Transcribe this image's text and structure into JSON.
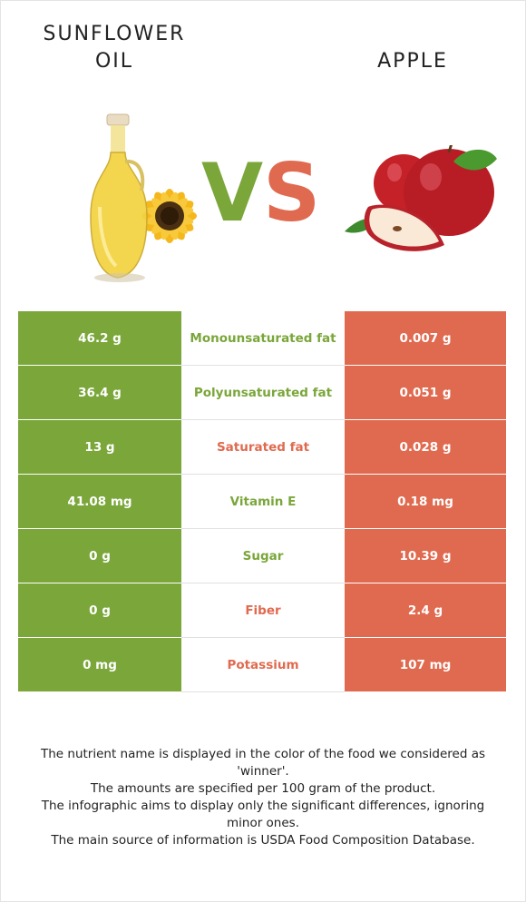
{
  "left_food": {
    "name_line1": "SUNFLOWER",
    "name_line2": "OIL",
    "color": "#7aa63a"
  },
  "right_food": {
    "name": "APPLE",
    "color": "#e06a4f"
  },
  "vs": {
    "v": "V",
    "s": "S"
  },
  "rows": [
    {
      "left": "46.2 g",
      "nutrient": "Monounsaturated fat",
      "right": "0.007 g",
      "winner": "left"
    },
    {
      "left": "36.4 g",
      "nutrient": "Polyunsaturated fat",
      "right": "0.051 g",
      "winner": "left"
    },
    {
      "left": "13 g",
      "nutrient": "Saturated fat",
      "right": "0.028 g",
      "winner": "right"
    },
    {
      "left": "41.08 mg",
      "nutrient": "Vitamin E",
      "right": "0.18 mg",
      "winner": "left"
    },
    {
      "left": "0 g",
      "nutrient": "Sugar",
      "right": "10.39 g",
      "winner": "left"
    },
    {
      "left": "0 g",
      "nutrient": "Fiber",
      "right": "2.4 g",
      "winner": "right"
    },
    {
      "left": "0 mg",
      "nutrient": "Potassium",
      "right": "107 mg",
      "winner": "right"
    }
  ],
  "footnote": {
    "line1": "The nutrient name is displayed in the color of the food we considered as 'winner'.",
    "line2": "The amounts are specified per 100 gram of the product.",
    "line3": "The infographic aims to display only the significant differences, ignoring minor ones.",
    "line4": "The main source of information is USDA Food Composition Database."
  }
}
